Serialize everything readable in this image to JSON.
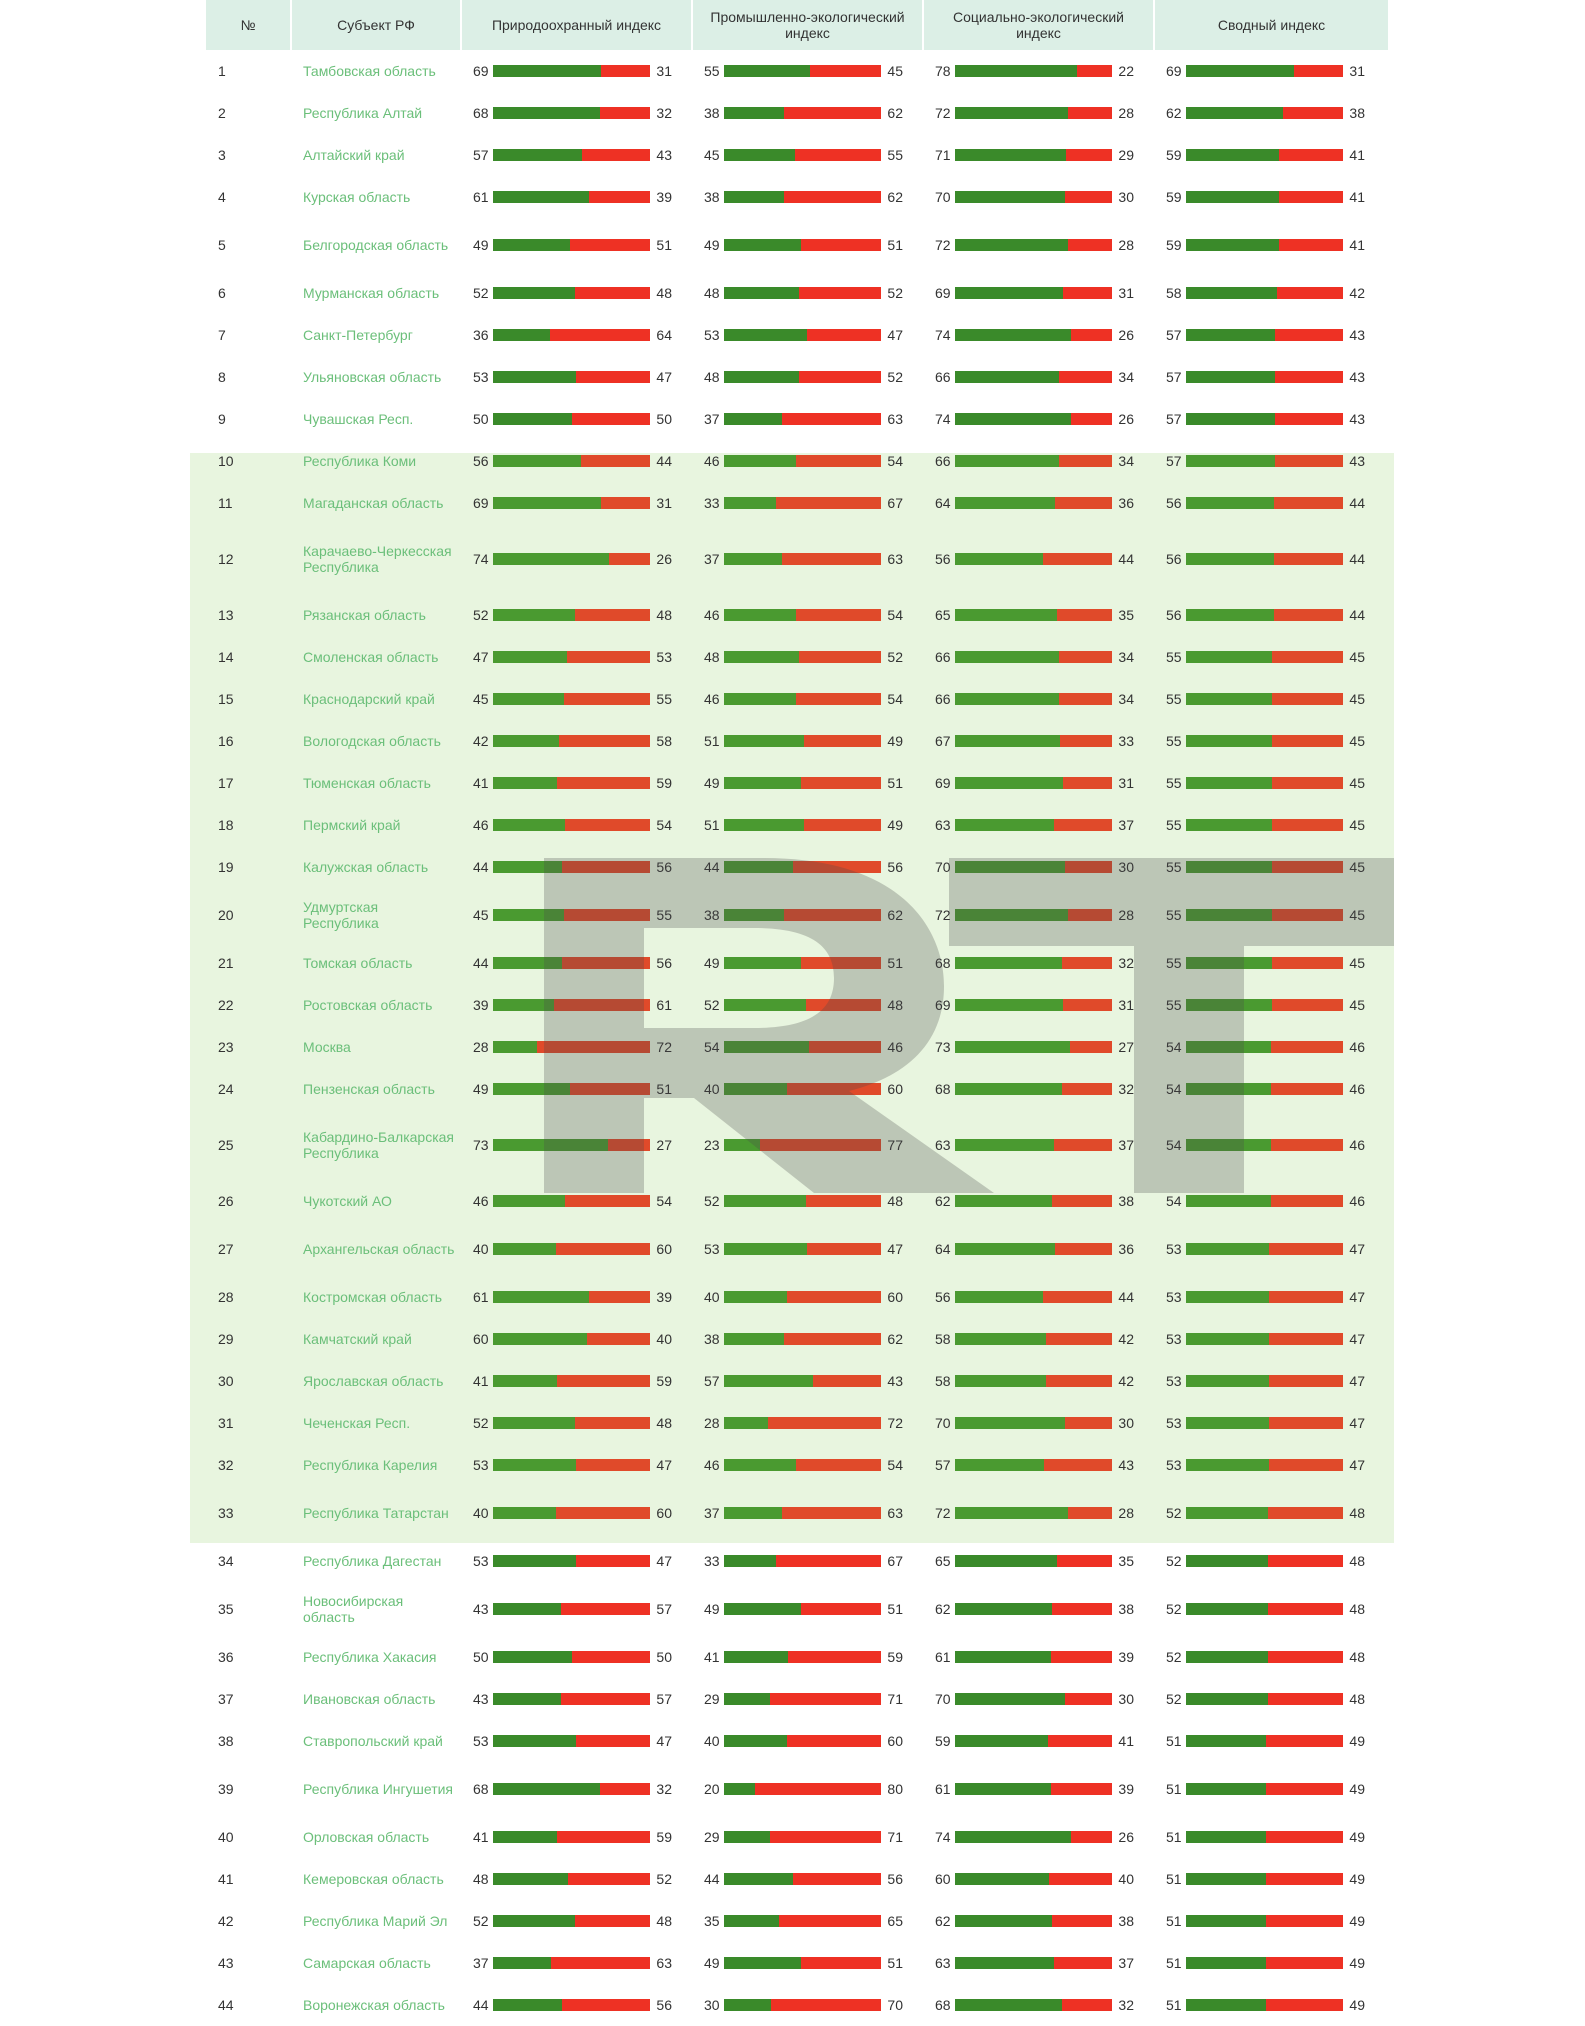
{
  "headers": {
    "num": "№",
    "region": "Субъект РФ",
    "nature": "Природоохранный индекс",
    "industry": "Промышленно-экологический индекс",
    "social": "Социально-экологический индекс",
    "summary": "Сводный индекс"
  },
  "watermark_text": "RT",
  "colors": {
    "positive": "#3a8a2a",
    "negative": "#ee3124",
    "highlight_band": "#e8f5df",
    "region_link": "#6bbf7a",
    "header_bg": "#dcefe6"
  },
  "highlight_rows": [
    10,
    33
  ],
  "rows": [
    {
      "n": "1",
      "region": "Тамбовская область",
      "nat": [
        69,
        31
      ],
      "ind": [
        55,
        45
      ],
      "soc": [
        78,
        22
      ],
      "sum": [
        69,
        31
      ]
    },
    {
      "n": "2",
      "region": "Республика Алтай",
      "nat": [
        68,
        32
      ],
      "ind": [
        38,
        62
      ],
      "soc": [
        72,
        28
      ],
      "sum": [
        62,
        38
      ]
    },
    {
      "n": "3",
      "region": "Алтайский край",
      "nat": [
        57,
        43
      ],
      "ind": [
        45,
        55
      ],
      "soc": [
        71,
        29
      ],
      "sum": [
        59,
        41
      ]
    },
    {
      "n": "4",
      "region": "Курская область",
      "nat": [
        61,
        39
      ],
      "ind": [
        38,
        62
      ],
      "soc": [
        70,
        30
      ],
      "sum": [
        59,
        41
      ]
    },
    {
      "n": "5",
      "region": "Белгородская область",
      "nat": [
        49,
        51
      ],
      "ind": [
        49,
        51
      ],
      "soc": [
        72,
        28
      ],
      "sum": [
        59,
        41
      ]
    },
    {
      "n": "6",
      "region": "Мурманская область",
      "nat": [
        52,
        48
      ],
      "ind": [
        48,
        52
      ],
      "soc": [
        69,
        31
      ],
      "sum": [
        58,
        42
      ]
    },
    {
      "n": "7",
      "region": "Санкт-Петербург",
      "nat": [
        36,
        64
      ],
      "ind": [
        53,
        47
      ],
      "soc": [
        74,
        26
      ],
      "sum": [
        57,
        43
      ]
    },
    {
      "n": "8",
      "region": "Ульяновская область",
      "nat": [
        53,
        47
      ],
      "ind": [
        48,
        52
      ],
      "soc": [
        66,
        34
      ],
      "sum": [
        57,
        43
      ]
    },
    {
      "n": "9",
      "region": "Чувашская Респ.",
      "nat": [
        50,
        50
      ],
      "ind": [
        37,
        63
      ],
      "soc": [
        74,
        26
      ],
      "sum": [
        57,
        43
      ]
    },
    {
      "n": "10",
      "region": "Республика Коми",
      "nat": [
        56,
        44
      ],
      "ind": [
        46,
        54
      ],
      "soc": [
        66,
        34
      ],
      "sum": [
        57,
        43
      ]
    },
    {
      "n": "11",
      "region": "Магаданская область",
      "nat": [
        69,
        31
      ],
      "ind": [
        33,
        67
      ],
      "soc": [
        64,
        36
      ],
      "sum": [
        56,
        44
      ]
    },
    {
      "n": "12",
      "region": "Карачаево-Черкесская Республика",
      "nat": [
        74,
        26
      ],
      "ind": [
        37,
        63
      ],
      "soc": [
        56,
        44
      ],
      "sum": [
        56,
        44
      ]
    },
    {
      "n": "13",
      "region": "Рязанская область",
      "nat": [
        52,
        48
      ],
      "ind": [
        46,
        54
      ],
      "soc": [
        65,
        35
      ],
      "sum": [
        56,
        44
      ]
    },
    {
      "n": "14",
      "region": "Смоленская область",
      "nat": [
        47,
        53
      ],
      "ind": [
        48,
        52
      ],
      "soc": [
        66,
        34
      ],
      "sum": [
        55,
        45
      ]
    },
    {
      "n": "15",
      "region": "Краснодарский край",
      "nat": [
        45,
        55
      ],
      "ind": [
        46,
        54
      ],
      "soc": [
        66,
        34
      ],
      "sum": [
        55,
        45
      ]
    },
    {
      "n": "16",
      "region": "Вологодская область",
      "nat": [
        42,
        58
      ],
      "ind": [
        51,
        49
      ],
      "soc": [
        67,
        33
      ],
      "sum": [
        55,
        45
      ]
    },
    {
      "n": "17",
      "region": "Тюменская область",
      "nat": [
        41,
        59
      ],
      "ind": [
        49,
        51
      ],
      "soc": [
        69,
        31
      ],
      "sum": [
        55,
        45
      ]
    },
    {
      "n": "18",
      "region": "Пермский край",
      "nat": [
        46,
        54
      ],
      "ind": [
        51,
        49
      ],
      "soc": [
        63,
        37
      ],
      "sum": [
        55,
        45
      ]
    },
    {
      "n": "19",
      "region": "Калужская область",
      "nat": [
        44,
        56
      ],
      "ind": [
        44,
        56
      ],
      "soc": [
        70,
        30
      ],
      "sum": [
        55,
        45
      ]
    },
    {
      "n": "20",
      "region": "Удмуртская Республика",
      "nat": [
        45,
        55
      ],
      "ind": [
        38,
        62
      ],
      "soc": [
        72,
        28
      ],
      "sum": [
        55,
        45
      ]
    },
    {
      "n": "21",
      "region": "Томская область",
      "nat": [
        44,
        56
      ],
      "ind": [
        49,
        51
      ],
      "soc": [
        68,
        32
      ],
      "sum": [
        55,
        45
      ]
    },
    {
      "n": "22",
      "region": "Ростовская область",
      "nat": [
        39,
        61
      ],
      "ind": [
        52,
        48
      ],
      "soc": [
        69,
        31
      ],
      "sum": [
        55,
        45
      ]
    },
    {
      "n": "23",
      "region": "Москва",
      "nat": [
        28,
        72
      ],
      "ind": [
        54,
        46
      ],
      "soc": [
        73,
        27
      ],
      "sum": [
        54,
        46
      ]
    },
    {
      "n": "24",
      "region": "Пензенская область",
      "nat": [
        49,
        51
      ],
      "ind": [
        40,
        60
      ],
      "soc": [
        68,
        32
      ],
      "sum": [
        54,
        46
      ]
    },
    {
      "n": "25",
      "region": "Кабардино-Балкарская Республика",
      "nat": [
        73,
        27
      ],
      "ind": [
        23,
        77
      ],
      "soc": [
        63,
        37
      ],
      "sum": [
        54,
        46
      ]
    },
    {
      "n": "26",
      "region": "Чукотский АО",
      "nat": [
        46,
        54
      ],
      "ind": [
        52,
        48
      ],
      "soc": [
        62,
        38
      ],
      "sum": [
        54,
        46
      ]
    },
    {
      "n": "27",
      "region": "Архангельская область",
      "nat": [
        40,
        60
      ],
      "ind": [
        53,
        47
      ],
      "soc": [
        64,
        36
      ],
      "sum": [
        53,
        47
      ]
    },
    {
      "n": "28",
      "region": "Костромская область",
      "nat": [
        61,
        39
      ],
      "ind": [
        40,
        60
      ],
      "soc": [
        56,
        44
      ],
      "sum": [
        53,
        47
      ]
    },
    {
      "n": "29",
      "region": "Камчатский край",
      "nat": [
        60,
        40
      ],
      "ind": [
        38,
        62
      ],
      "soc": [
        58,
        42
      ],
      "sum": [
        53,
        47
      ]
    },
    {
      "n": "30",
      "region": "Ярославская область",
      "nat": [
        41,
        59
      ],
      "ind": [
        57,
        43
      ],
      "soc": [
        58,
        42
      ],
      "sum": [
        53,
        47
      ]
    },
    {
      "n": "31",
      "region": "Чеченская Респ.",
      "nat": [
        52,
        48
      ],
      "ind": [
        28,
        72
      ],
      "soc": [
        70,
        30
      ],
      "sum": [
        53,
        47
      ]
    },
    {
      "n": "32",
      "region": "Республика Карелия",
      "nat": [
        53,
        47
      ],
      "ind": [
        46,
        54
      ],
      "soc": [
        57,
        43
      ],
      "sum": [
        53,
        47
      ]
    },
    {
      "n": "33",
      "region": "Республика Татарстан",
      "nat": [
        40,
        60
      ],
      "ind": [
        37,
        63
      ],
      "soc": [
        72,
        28
      ],
      "sum": [
        52,
        48
      ]
    },
    {
      "n": "34",
      "region": "Республика Дагестан",
      "nat": [
        53,
        47
      ],
      "ind": [
        33,
        67
      ],
      "soc": [
        65,
        35
      ],
      "sum": [
        52,
        48
      ]
    },
    {
      "n": "35",
      "region": "Новосибирская область",
      "nat": [
        43,
        57
      ],
      "ind": [
        49,
        51
      ],
      "soc": [
        62,
        38
      ],
      "sum": [
        52,
        48
      ]
    },
    {
      "n": "36",
      "region": "Республика Хакасия",
      "nat": [
        50,
        50
      ],
      "ind": [
        41,
        59
      ],
      "soc": [
        61,
        39
      ],
      "sum": [
        52,
        48
      ]
    },
    {
      "n": "37",
      "region": "Ивановская область",
      "nat": [
        43,
        57
      ],
      "ind": [
        29,
        71
      ],
      "soc": [
        70,
        30
      ],
      "sum": [
        52,
        48
      ]
    },
    {
      "n": "38",
      "region": "Ставропольский край",
      "nat": [
        53,
        47
      ],
      "ind": [
        40,
        60
      ],
      "soc": [
        59,
        41
      ],
      "sum": [
        51,
        49
      ]
    },
    {
      "n": "39",
      "region": "Республика Ингушетия",
      "nat": [
        68,
        32
      ],
      "ind": [
        20,
        80
      ],
      "soc": [
        61,
        39
      ],
      "sum": [
        51,
        49
      ]
    },
    {
      "n": "40",
      "region": "Орловская область",
      "nat": [
        41,
        59
      ],
      "ind": [
        29,
        71
      ],
      "soc": [
        74,
        26
      ],
      "sum": [
        51,
        49
      ]
    },
    {
      "n": "41",
      "region": "Кемеровская область",
      "nat": [
        48,
        52
      ],
      "ind": [
        44,
        56
      ],
      "soc": [
        60,
        40
      ],
      "sum": [
        51,
        49
      ]
    },
    {
      "n": "42",
      "region": "Республика Марий Эл",
      "nat": [
        52,
        48
      ],
      "ind": [
        35,
        65
      ],
      "soc": [
        62,
        38
      ],
      "sum": [
        51,
        49
      ]
    },
    {
      "n": "43",
      "region": "Самарская область",
      "nat": [
        37,
        63
      ],
      "ind": [
        49,
        51
      ],
      "soc": [
        63,
        37
      ],
      "sum": [
        51,
        49
      ]
    },
    {
      "n": "44",
      "region": "Воронежская область",
      "nat": [
        44,
        56
      ],
      "ind": [
        30,
        70
      ],
      "soc": [
        68,
        32
      ],
      "sum": [
        51,
        49
      ]
    }
  ]
}
